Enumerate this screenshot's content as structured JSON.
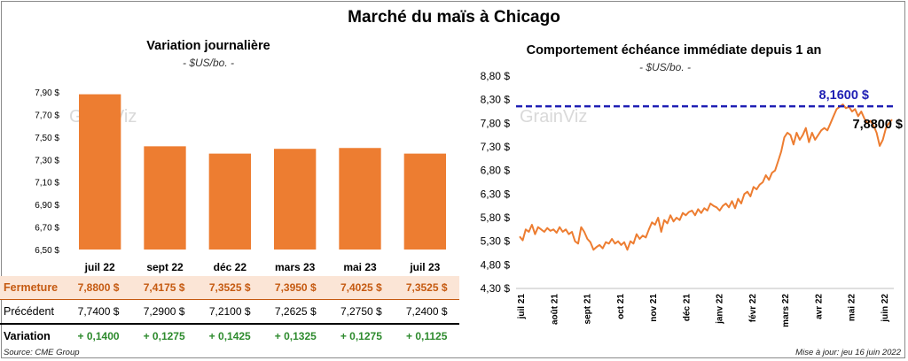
{
  "header": {
    "title": "Marché du maïs à Chicago",
    "left_title": "Variation journalière",
    "left_unit": "- $US/bo. -",
    "right_title": "Comportement  échéance immédiate depuis 1 an",
    "right_unit": "- $US/bo. -"
  },
  "watermark": "GrainViz",
  "footer": {
    "source": "Source: CME Group",
    "updated": "Mise à jour: jeu 16 juin 2022"
  },
  "colors": {
    "bar": "#ed7d31",
    "line": "#ed7d31",
    "ref_line": "#1f1fb4",
    "positive": "#2e8b2e"
  },
  "table": {
    "rows": [
      {
        "label": "Fermeture",
        "values": [
          "7,8800  $",
          "7,4175  $",
          "7,3525  $",
          "7,3950  $",
          "7,4025  $",
          "7,3525  $"
        ]
      },
      {
        "label": "Précédent",
        "values": [
          "7,7400  $",
          "7,2900  $",
          "7,2100  $",
          "7,2625  $",
          "7,2750  $",
          "7,2400  $"
        ]
      },
      {
        "label": "Variation",
        "values": [
          "+ 0,1400",
          "+ 0,1275",
          "+ 0,1425",
          "+ 0,1325",
          "+ 0,1275",
          "+ 0,1125"
        ]
      }
    ]
  },
  "chart_data": [
    {
      "type": "bar",
      "title": "Variation journalière",
      "categories": [
        "juil 22",
        "sept 22",
        "déc 22",
        "mars 23",
        "mai 23",
        "juil 23"
      ],
      "values": [
        7.88,
        7.4175,
        7.3525,
        7.395,
        7.4025,
        7.3525
      ],
      "ylim": [
        6.5,
        7.9
      ],
      "yticks": [
        6.5,
        6.7,
        6.9,
        7.1,
        7.3,
        7.5,
        7.7,
        7.9
      ],
      "ytick_labels": [
        "6,50 $",
        "6,70 $",
        "6,90 $",
        "7,10 $",
        "7,30 $",
        "7,50 $",
        "7,70 $",
        "7,90 $"
      ],
      "grid": false
    },
    {
      "type": "line",
      "title": "Comportement  échéance immédiate depuis 1 an",
      "ylim": [
        4.3,
        8.8
      ],
      "yticks": [
        4.3,
        4.8,
        5.3,
        5.8,
        6.3,
        6.8,
        7.3,
        7.8,
        8.3,
        8.8
      ],
      "ytick_labels": [
        "4,30 $",
        "4,80 $",
        "5,30 $",
        "5,80 $",
        "6,30 $",
        "6,80 $",
        "7,30 $",
        "7,80 $",
        "8,30 $",
        "8,80 $"
      ],
      "xtick_labels": [
        "juil 21",
        "août 21",
        "sept 21",
        "oct 21",
        "nov 21",
        "déc 21",
        "janv 22",
        "févr 22",
        "mars 22",
        "avr 22",
        "mai 22",
        "juin 22"
      ],
      "reference_line": {
        "value": 8.16,
        "label": "8,1600 $"
      },
      "last_value": {
        "value": 7.88,
        "label": "7,8800 $"
      },
      "series": [
        {
          "values": [
            5.4,
            5.32,
            5.55,
            5.5,
            5.65,
            5.45,
            5.6,
            5.55,
            5.5,
            5.58,
            5.52,
            5.55,
            5.48,
            5.6,
            5.5,
            5.55,
            5.45,
            5.5,
            5.3,
            5.25,
            5.6,
            5.5,
            5.35,
            5.28,
            5.12,
            5.18,
            5.22,
            5.15,
            5.28,
            5.25,
            5.35,
            5.25,
            5.3,
            5.22,
            5.28,
            5.12,
            5.3,
            5.25,
            5.45,
            5.35,
            5.42,
            5.38,
            5.55,
            5.7,
            5.65,
            5.8,
            5.5,
            5.75,
            5.68,
            5.85,
            5.72,
            5.8,
            5.75,
            5.9,
            5.85,
            5.92,
            5.95,
            5.85,
            5.98,
            5.9,
            6.0,
            5.95,
            6.1,
            6.05,
            6.02,
            5.95,
            6.05,
            6.1,
            6.02,
            6.15,
            6.0,
            6.2,
            6.1,
            6.3,
            6.35,
            6.25,
            6.45,
            6.4,
            6.5,
            6.55,
            6.7,
            6.6,
            6.75,
            6.8,
            7.0,
            7.2,
            7.5,
            7.6,
            7.55,
            7.35,
            7.6,
            7.45,
            7.55,
            7.7,
            7.4,
            7.6,
            7.45,
            7.55,
            7.65,
            7.7,
            7.65,
            7.8,
            7.95,
            8.1,
            8.15,
            8.2,
            8.12,
            8.15,
            8.05,
            8.1,
            7.95,
            8.05,
            7.9,
            7.8,
            7.85,
            7.75,
            7.6,
            7.32,
            7.45,
            7.7,
            7.8,
            7.88
          ]
        }
      ]
    }
  ]
}
